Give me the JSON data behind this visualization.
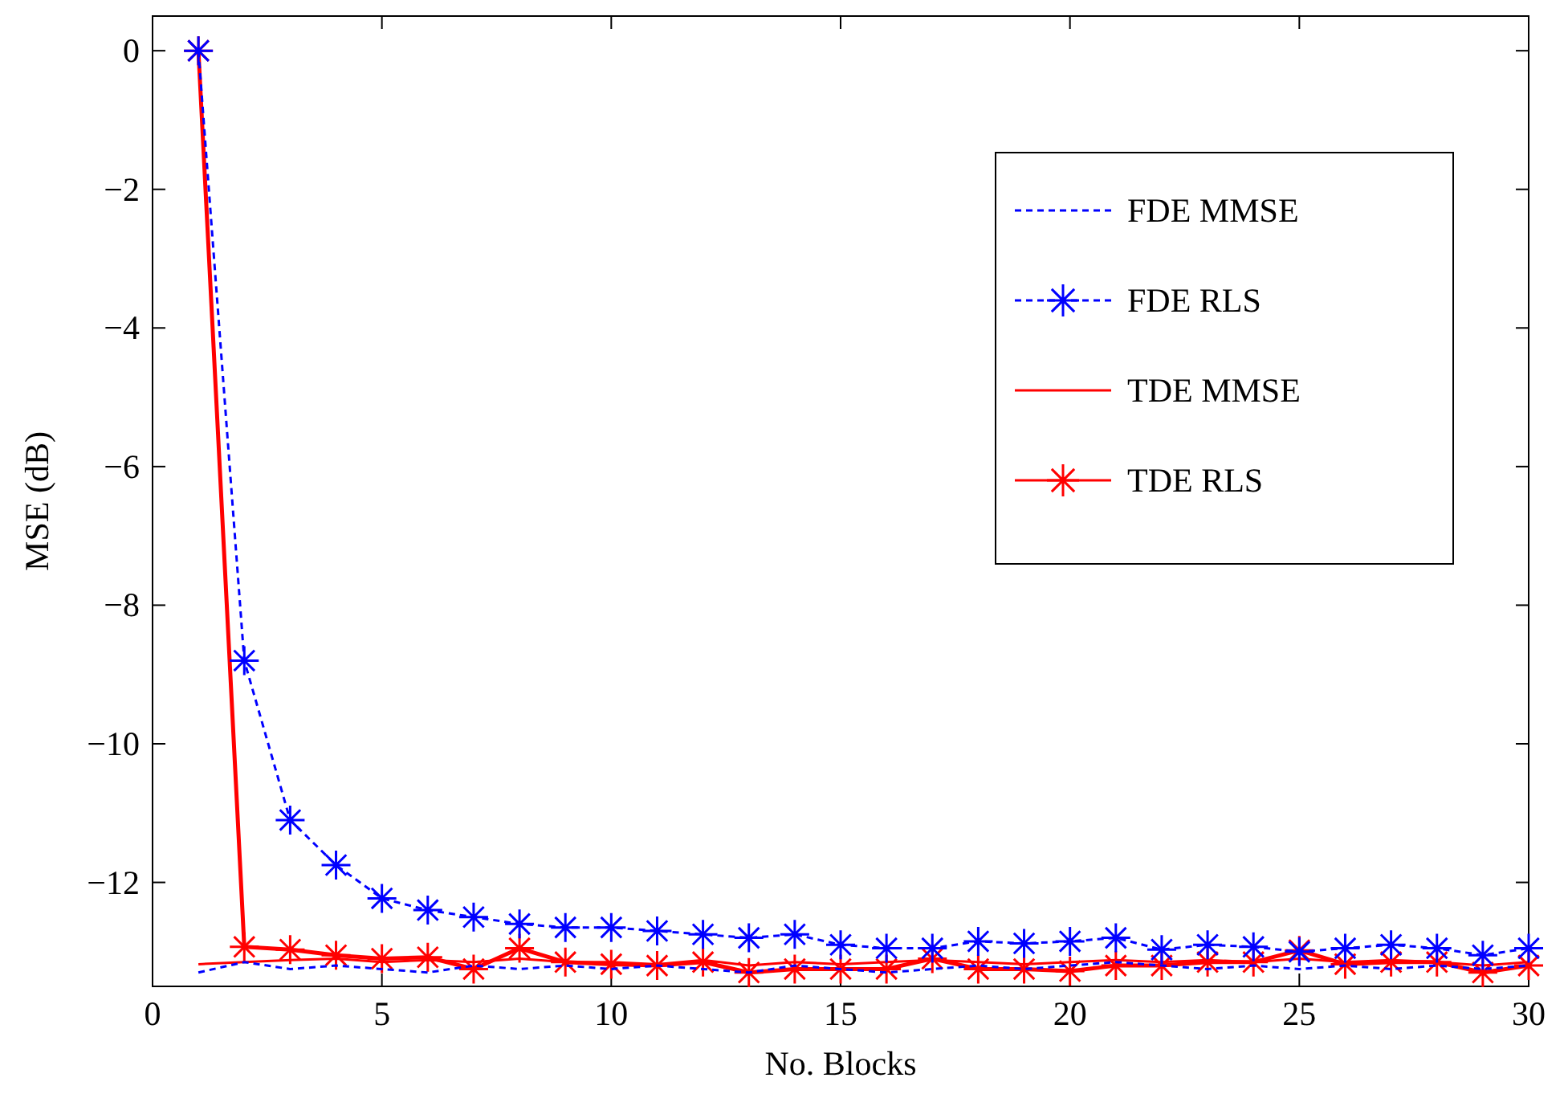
{
  "chart_data": {
    "type": "line",
    "xlabel": "No. Blocks",
    "ylabel": "MSE (dB)",
    "x": [
      1,
      2,
      3,
      4,
      5,
      6,
      7,
      8,
      9,
      10,
      11,
      12,
      13,
      14,
      15,
      16,
      17,
      18,
      19,
      20,
      21,
      22,
      23,
      24,
      25,
      26,
      27,
      28,
      29,
      30
    ],
    "series": [
      {
        "name": "FDE MMSE",
        "color": "#0000ff",
        "line_style": "dashed",
        "marker": "none",
        "values": [
          -13.3,
          -13.15,
          -13.25,
          -13.2,
          -13.25,
          -13.3,
          -13.2,
          -13.25,
          -13.2,
          -13.25,
          -13.2,
          -13.25,
          -13.3,
          -13.2,
          -13.25,
          -13.3,
          -13.25,
          -13.2,
          -13.25,
          -13.2,
          -13.15,
          -13.2,
          -13.25,
          -13.2,
          -13.25,
          -13.2,
          -13.25,
          -13.2,
          -13.25,
          -13.2
        ]
      },
      {
        "name": "FDE RLS",
        "color": "#0000ff",
        "line_style": "dashed",
        "marker": "cross",
        "values": [
          0,
          -8.8,
          -11.1,
          -11.75,
          -12.23,
          -12.4,
          -12.5,
          -12.6,
          -12.65,
          -12.65,
          -12.7,
          -12.75,
          -12.8,
          -12.75,
          -12.9,
          -12.95,
          -12.95,
          -12.85,
          -12.88,
          -12.85,
          -12.8,
          -12.97,
          -12.9,
          -12.93,
          -13.0,
          -12.95,
          -12.9,
          -12.95,
          -13.05,
          -12.95
        ]
      },
      {
        "name": "TDE MMSE",
        "color": "#ff0000",
        "line_style": "solid",
        "marker": "none",
        "values": [
          -13.18,
          -13.15,
          -13.12,
          -13.1,
          -13.15,
          -13.12,
          -13.15,
          -13.1,
          -13.15,
          -13.15,
          -13.18,
          -13.12,
          -13.2,
          -13.15,
          -13.18,
          -13.15,
          -13.12,
          -13.15,
          -13.18,
          -13.15,
          -13.12,
          -13.15,
          -13.12,
          -13.15,
          -13.1,
          -13.15,
          -13.12,
          -13.15,
          -13.2,
          -13.15
        ]
      },
      {
        "name": "TDE RLS",
        "color": "#ff0000",
        "line_style": "solid",
        "marker": "cross",
        "values": [
          0,
          -12.93,
          -12.97,
          -13.05,
          -13.1,
          -13.08,
          -13.25,
          -12.95,
          -13.15,
          -13.18,
          -13.2,
          -13.15,
          -13.3,
          -13.25,
          -13.25,
          -13.25,
          -13.1,
          -13.25,
          -13.25,
          -13.28,
          -13.2,
          -13.2,
          -13.15,
          -13.15,
          -12.98,
          -13.18,
          -13.15,
          -13.15,
          -13.3,
          -13.2
        ]
      }
    ],
    "xlim": [
      0,
      30
    ],
    "xticks": [
      0,
      5,
      10,
      15,
      20,
      25,
      30
    ],
    "ylim": [
      -13.5,
      0.5
    ],
    "yticks": [
      -12,
      -10,
      -8,
      -6,
      -4,
      -2,
      0
    ],
    "legend": "top right",
    "grid": false
  }
}
